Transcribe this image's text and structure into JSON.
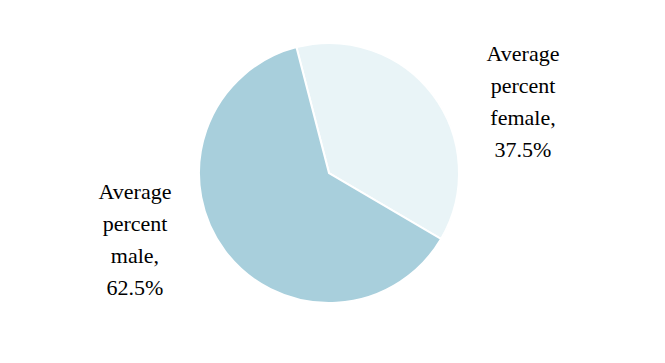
{
  "chart_data": {
    "type": "pie",
    "categories": [
      "Average percent female,",
      "Average percent male,"
    ],
    "values": [
      37.5,
      62.5
    ],
    "value_labels": [
      "37.5%",
      "62.5%"
    ],
    "colors": [
      "#e9f4f7",
      "#a8cfdc"
    ],
    "data_labels": true
  }
}
